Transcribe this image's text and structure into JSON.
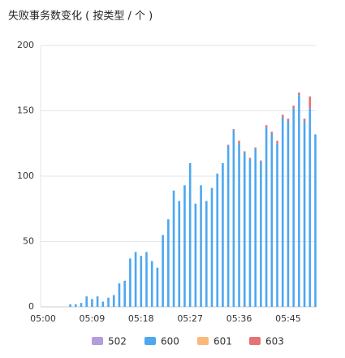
{
  "chart_data": {
    "type": "bar",
    "stacked": true,
    "title": "失败事务数变化 ( 按类型 / 个 )",
    "categories": [
      "05:00",
      null,
      null,
      null,
      null,
      null,
      null,
      null,
      null,
      "05:09",
      null,
      null,
      null,
      null,
      null,
      null,
      null,
      null,
      "05:18",
      null,
      null,
      null,
      null,
      null,
      null,
      null,
      null,
      "05:27",
      null,
      null,
      null,
      null,
      null,
      null,
      null,
      null,
      "05:36",
      null,
      null,
      null,
      null,
      null,
      null,
      null,
      null,
      "05:45",
      null,
      null,
      null,
      null,
      null
    ],
    "series": [
      {
        "name": "502",
        "color": "#b39ddb",
        "values": [
          0,
          0,
          0,
          0,
          0,
          0,
          0,
          0,
          0,
          0,
          0,
          0,
          0,
          0,
          0,
          0,
          0,
          0,
          0,
          0,
          0,
          0,
          0,
          0,
          0,
          0,
          0,
          0,
          0,
          0,
          0,
          0,
          0,
          0,
          0,
          0,
          0,
          0,
          0,
          0,
          0,
          0,
          0,
          0,
          0,
          0,
          0,
          0,
          0,
          0,
          0
        ]
      },
      {
        "name": "600",
        "color": "#4ea7f0",
        "values": [
          0,
          0,
          0,
          0,
          0,
          2,
          2,
          3,
          8,
          6,
          8,
          4,
          7,
          9,
          18,
          20,
          37,
          42,
          39,
          42,
          35,
          30,
          55,
          67,
          89,
          81,
          93,
          110,
          79,
          93,
          81,
          91,
          102,
          110,
          123,
          135,
          125,
          118,
          113,
          121,
          111,
          137,
          132,
          125,
          145,
          142,
          152,
          162,
          142,
          152,
          132
        ]
      },
      {
        "name": "601",
        "color": "#f9b97a",
        "values": [
          0,
          0,
          0,
          0,
          0,
          0,
          0,
          0,
          0,
          0,
          0,
          0,
          0,
          0,
          0,
          0,
          0,
          0,
          0,
          0,
          0,
          0,
          0,
          0,
          0,
          0,
          0,
          0,
          0,
          0,
          0,
          0,
          0,
          0,
          0,
          0,
          0,
          0,
          0,
          0,
          0,
          0,
          0,
          0,
          0,
          0,
          0,
          0,
          0,
          0,
          0
        ]
      },
      {
        "name": "603",
        "color": "#e57373",
        "values": [
          0,
          0,
          0,
          0,
          0,
          0,
          0,
          0,
          0,
          0,
          0,
          0,
          0,
          0,
          0,
          0,
          0,
          0,
          0,
          0,
          0,
          0,
          0,
          0,
          0,
          0,
          0,
          0,
          0,
          0,
          0,
          0,
          0,
          0,
          1,
          1,
          2,
          1,
          1,
          1,
          1,
          2,
          2,
          2,
          2,
          2,
          2,
          2,
          2,
          9,
          0
        ]
      }
    ],
    "ylim": [
      0,
      200
    ],
    "yticks": [
      0,
      50,
      100,
      150,
      200
    ],
    "grid": true,
    "legend": "bottom"
  }
}
